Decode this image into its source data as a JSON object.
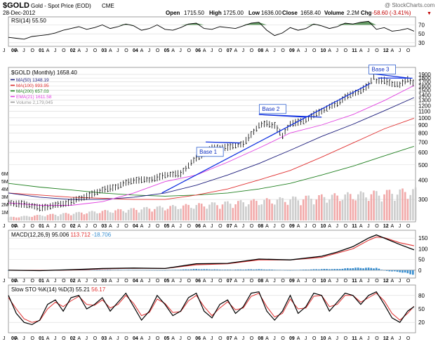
{
  "header": {
    "symbol": "$GOLD",
    "name": "Gold - Spot Price (EOD)",
    "exchange": "CME",
    "date": "28-Dec-2012",
    "copyright": "@ StockCharts.com",
    "open_label": "Open",
    "open": "1715.50",
    "high_label": "High",
    "high": "1725.00",
    "low_label": "Low",
    "low": "1636.00",
    "close_label": "Close",
    "close": "1658.40",
    "volume_label": "Volume",
    "volume": "2.2M",
    "chg_label": "Chg",
    "chg": "-58.60 (-3.41%)"
  },
  "colors": {
    "price_bar": "#000000",
    "ma50": "#1a1a7a",
    "ma100": "#e03030",
    "ma200": "#208020",
    "ema21": "#e040e0",
    "volume_up": "#c8c8c8",
    "volume_down": "#f0a0a0",
    "trendline": "#1030e0",
    "macd_line": "#000000",
    "signal_line": "#e03030",
    "histogram": "#3a8fd0",
    "rsi_fill": "#4a8a4a",
    "panel_bg": "#ffffff",
    "grid": "#d8d8d8"
  },
  "chart_data": [
    {
      "type": "line",
      "panel": "rsi",
      "label": "RSI(14) 55.50",
      "ylim": [
        25,
        85
      ],
      "y_ticks": [
        30,
        50,
        70
      ],
      "overbought": 70,
      "oversold": 30,
      "x": [
        2000.0,
        2000.25,
        2000.5,
        2000.75,
        2001.0,
        2001.25,
        2001.5,
        2001.75,
        2002.0,
        2002.25,
        2002.5,
        2002.75,
        2003.0,
        2003.25,
        2003.5,
        2003.75,
        2004.0,
        2004.25,
        2004.5,
        2004.75,
        2005.0,
        2005.25,
        2005.5,
        2005.75,
        2006.0,
        2006.25,
        2006.5,
        2006.75,
        2007.0,
        2007.25,
        2007.5,
        2007.75,
        2008.0,
        2008.25,
        2008.5,
        2008.75,
        2009.0,
        2009.25,
        2009.5,
        2009.75,
        2010.0,
        2010.25,
        2010.5,
        2010.75,
        2011.0,
        2011.25,
        2011.5,
        2011.75,
        2012.0,
        2012.25,
        2012.5,
        2012.75,
        2012.95
      ],
      "values": [
        42,
        40,
        38,
        44,
        46,
        48,
        52,
        58,
        62,
        66,
        60,
        64,
        70,
        62,
        66,
        72,
        68,
        58,
        62,
        70,
        60,
        58,
        64,
        72,
        74,
        62,
        60,
        66,
        64,
        62,
        68,
        74,
        76,
        58,
        46,
        52,
        64,
        58,
        62,
        72,
        68,
        62,
        66,
        74,
        72,
        76,
        78,
        60,
        64,
        56,
        58,
        62,
        56
      ]
    },
    {
      "type": "bar",
      "panel": "price",
      "title": "$GOLD (Monthly) 1658.40",
      "ylim": [
        220,
        2020
      ],
      "y_ticks": [
        300,
        400,
        500,
        600,
        700,
        800,
        900,
        1000,
        1100,
        1200,
        1300,
        1400,
        1500,
        1600,
        1700,
        1800,
        1900
      ],
      "volume_ticks": [
        "1M",
        "2M",
        "3M",
        "4M",
        "5M",
        "6M"
      ],
      "legend": [
        {
          "name": "MA(50)",
          "value": "1348.19"
        },
        {
          "name": "MA(100)",
          "value": "993.95"
        },
        {
          "name": "MA(200)",
          "value": "657.03"
        },
        {
          "name": "EMA(21)",
          "value": "1611.58"
        },
        {
          "name": "Volume",
          "value": "2,179,045"
        }
      ],
      "annotations": [
        {
          "text": "Base 1",
          "x": 2006.1,
          "y": 590
        },
        {
          "text": "Base 2",
          "x": 2008.1,
          "y": 1110
        },
        {
          "text": "Base 3",
          "x": 2011.6,
          "y": 1990
        }
      ],
      "price_x": [
        2000.0,
        2000.5,
        2001.0,
        2001.5,
        2002.0,
        2002.5,
        2003.0,
        2003.5,
        2004.0,
        2004.5,
        2005.0,
        2005.5,
        2006.0,
        2006.5,
        2007.0,
        2007.5,
        2008.0,
        2008.25,
        2008.5,
        2008.75,
        2009.0,
        2009.25,
        2009.5,
        2009.75,
        2010.0,
        2010.25,
        2010.5,
        2010.75,
        2011.0,
        2011.25,
        2011.5,
        2011.67,
        2011.75,
        2012.0,
        2012.25,
        2012.5,
        2012.75,
        2012.95
      ],
      "price_close": [
        285,
        280,
        265,
        275,
        290,
        315,
        345,
        365,
        400,
        400,
        430,
        440,
        550,
        640,
        650,
        680,
        890,
        920,
        900,
        760,
        920,
        940,
        960,
        1050,
        1110,
        1170,
        1240,
        1360,
        1420,
        1500,
        1620,
        1830,
        1720,
        1740,
        1660,
        1620,
        1780,
        1658
      ],
      "ma_x": [
        2000,
        2001,
        2002,
        2003,
        2004,
        2005,
        2006,
        2007,
        2008,
        2009,
        2010,
        2011,
        2012,
        2012.95
      ],
      "ma50": [
        330,
        310,
        300,
        300,
        310,
        330,
        370,
        430,
        510,
        620,
        760,
        910,
        1110,
        1348
      ],
      "ma100": [
        330,
        320,
        310,
        305,
        300,
        300,
        320,
        350,
        400,
        460,
        560,
        690,
        850,
        994
      ],
      "ma200": [
        380,
        360,
        345,
        330,
        320,
        315,
        320,
        330,
        350,
        380,
        430,
        490,
        570,
        657
      ],
      "ema21": [
        285,
        275,
        275,
        290,
        330,
        390,
        430,
        520,
        640,
        800,
        900,
        1050,
        1290,
        1612
      ]
    },
    {
      "type": "line",
      "panel": "macd",
      "label": "MACD(12,26,9)",
      "macd_value": "95.006",
      "signal_value": "113.712",
      "histogram_value": "-18.706",
      "ylim": [
        -30,
        180
      ],
      "y_ticks": [
        0,
        50,
        100,
        150
      ],
      "x": [
        2000,
        2001,
        2002,
        2003,
        2004,
        2005,
        2006,
        2007,
        2008,
        2009,
        2010,
        2010.5,
        2011,
        2011.5,
        2011.75,
        2012,
        2012.5,
        2012.95
      ],
      "macd": [
        0,
        -2,
        2,
        8,
        10,
        8,
        30,
        32,
        52,
        48,
        65,
        85,
        110,
        150,
        165,
        150,
        120,
        95
      ],
      "signal": [
        0,
        -1,
        1,
        6,
        9,
        8,
        25,
        30,
        48,
        48,
        60,
        80,
        100,
        140,
        155,
        152,
        128,
        114
      ],
      "histogram": [
        0,
        -1,
        1,
        2,
        1,
        0,
        5,
        2,
        4,
        0,
        5,
        5,
        10,
        10,
        10,
        -2,
        -8,
        -19
      ]
    },
    {
      "type": "line",
      "panel": "stochastic",
      "label": "Slow STO %K(14) %D(3)",
      "k_value": "55.21",
      "d_value": "56.17",
      "ylim": [
        0,
        100
      ],
      "y_ticks": [
        20,
        50,
        80
      ],
      "x": [
        2000.0,
        2000.25,
        2000.5,
        2000.75,
        2001.0,
        2001.25,
        2001.5,
        2001.75,
        2002.0,
        2002.25,
        2002.5,
        2002.75,
        2003.0,
        2003.25,
        2003.5,
        2003.75,
        2004.0,
        2004.25,
        2004.5,
        2004.75,
        2005.0,
        2005.25,
        2005.5,
        2005.75,
        2006.0,
        2006.25,
        2006.5,
        2006.75,
        2007.0,
        2007.25,
        2007.5,
        2007.75,
        2008.0,
        2008.25,
        2008.5,
        2008.75,
        2009.0,
        2009.25,
        2009.5,
        2009.75,
        2010.0,
        2010.25,
        2010.5,
        2010.75,
        2011.0,
        2011.25,
        2011.5,
        2011.75,
        2012.0,
        2012.25,
        2012.5,
        2012.75,
        2012.95
      ],
      "k": [
        80,
        40,
        20,
        15,
        25,
        60,
        70,
        45,
        75,
        80,
        50,
        60,
        75,
        45,
        65,
        85,
        55,
        25,
        45,
        80,
        60,
        35,
        45,
        75,
        85,
        45,
        30,
        60,
        70,
        40,
        55,
        85,
        88,
        45,
        25,
        45,
        80,
        40,
        55,
        85,
        80,
        45,
        65,
        85,
        80,
        60,
        80,
        88,
        60,
        30,
        20,
        45,
        55
      ],
      "d": [
        75,
        50,
        28,
        20,
        24,
        50,
        65,
        55,
        68,
        78,
        60,
        58,
        70,
        52,
        60,
        80,
        62,
        35,
        42,
        72,
        62,
        42,
        44,
        68,
        80,
        55,
        35,
        52,
        66,
        48,
        52,
        78,
        85,
        55,
        32,
        40,
        72,
        50,
        52,
        78,
        80,
        55,
        60,
        80,
        80,
        65,
        75,
        85,
        68,
        40,
        25,
        40,
        56
      ]
    }
  ],
  "x_axis": {
    "year_labels": [
      "00",
      "01",
      "02",
      "03",
      "04",
      "05",
      "06",
      "07",
      "08",
      "09",
      "10",
      "11",
      "12"
    ],
    "month_labels": [
      "J",
      "A",
      "J",
      "O"
    ],
    "start": 2000.0,
    "end": 2013.0
  }
}
